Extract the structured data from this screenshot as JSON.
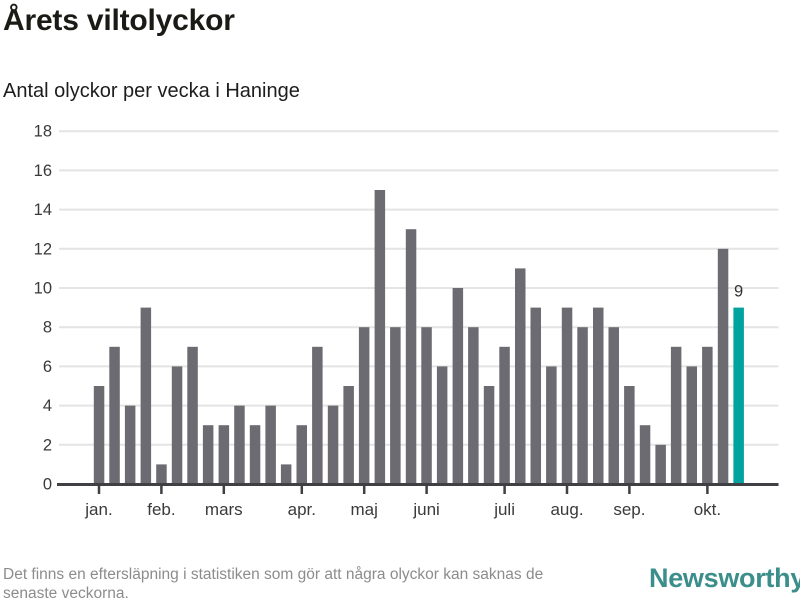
{
  "header": {
    "title": "Årets viltolyckor",
    "subtitle": "Antal olyckor per vecka i Haninge"
  },
  "chart_data": {
    "type": "bar",
    "title": "Årets viltolyckor",
    "subtitle": "Antal olyckor per vecka i Haninge",
    "unit": "olyckor per vecka",
    "values": [
      5,
      7,
      4,
      9,
      1,
      6,
      7,
      3,
      3,
      4,
      3,
      4,
      1,
      3,
      7,
      4,
      5,
      8,
      15,
      8,
      13,
      8,
      6,
      10,
      8,
      5,
      7,
      11,
      9,
      6,
      9,
      8,
      9,
      8,
      5,
      3,
      2,
      7,
      6,
      7,
      12,
      9
    ],
    "highlight_index": 41,
    "highlight_label": "9",
    "month_ticks": [
      {
        "label": "jan.",
        "index": 0
      },
      {
        "label": "feb.",
        "index": 4
      },
      {
        "label": "mars",
        "index": 8
      },
      {
        "label": "apr.",
        "index": 13
      },
      {
        "label": "maj",
        "index": 17
      },
      {
        "label": "juni",
        "index": 21
      },
      {
        "label": "juli",
        "index": 26
      },
      {
        "label": "aug.",
        "index": 30
      },
      {
        "label": "sep.",
        "index": 34
      },
      {
        "label": "okt.",
        "index": 39
      }
    ],
    "yticks": [
      0,
      2,
      4,
      6,
      8,
      10,
      12,
      14,
      16,
      18
    ],
    "ylim": [
      0,
      18
    ],
    "grid": true,
    "legend": "none",
    "bar_color": "#6b6b71",
    "highlight_color": "#00a39d",
    "grid_color": "#e4e4e4",
    "axis_color": "#3f3f44",
    "tick_label_color": "#3a3a3a"
  },
  "footer": {
    "note_line1": "Det finns en eftersläpning i statistiken som gör att några olyckor kan saknas de",
    "note_line2": "senaste veckorna.",
    "brand": "Newsworthy"
  },
  "colors": {
    "accent_teal": "#00a39d",
    "brand_teal": "#3c8e8b",
    "bar_gray": "#6b6b71"
  }
}
